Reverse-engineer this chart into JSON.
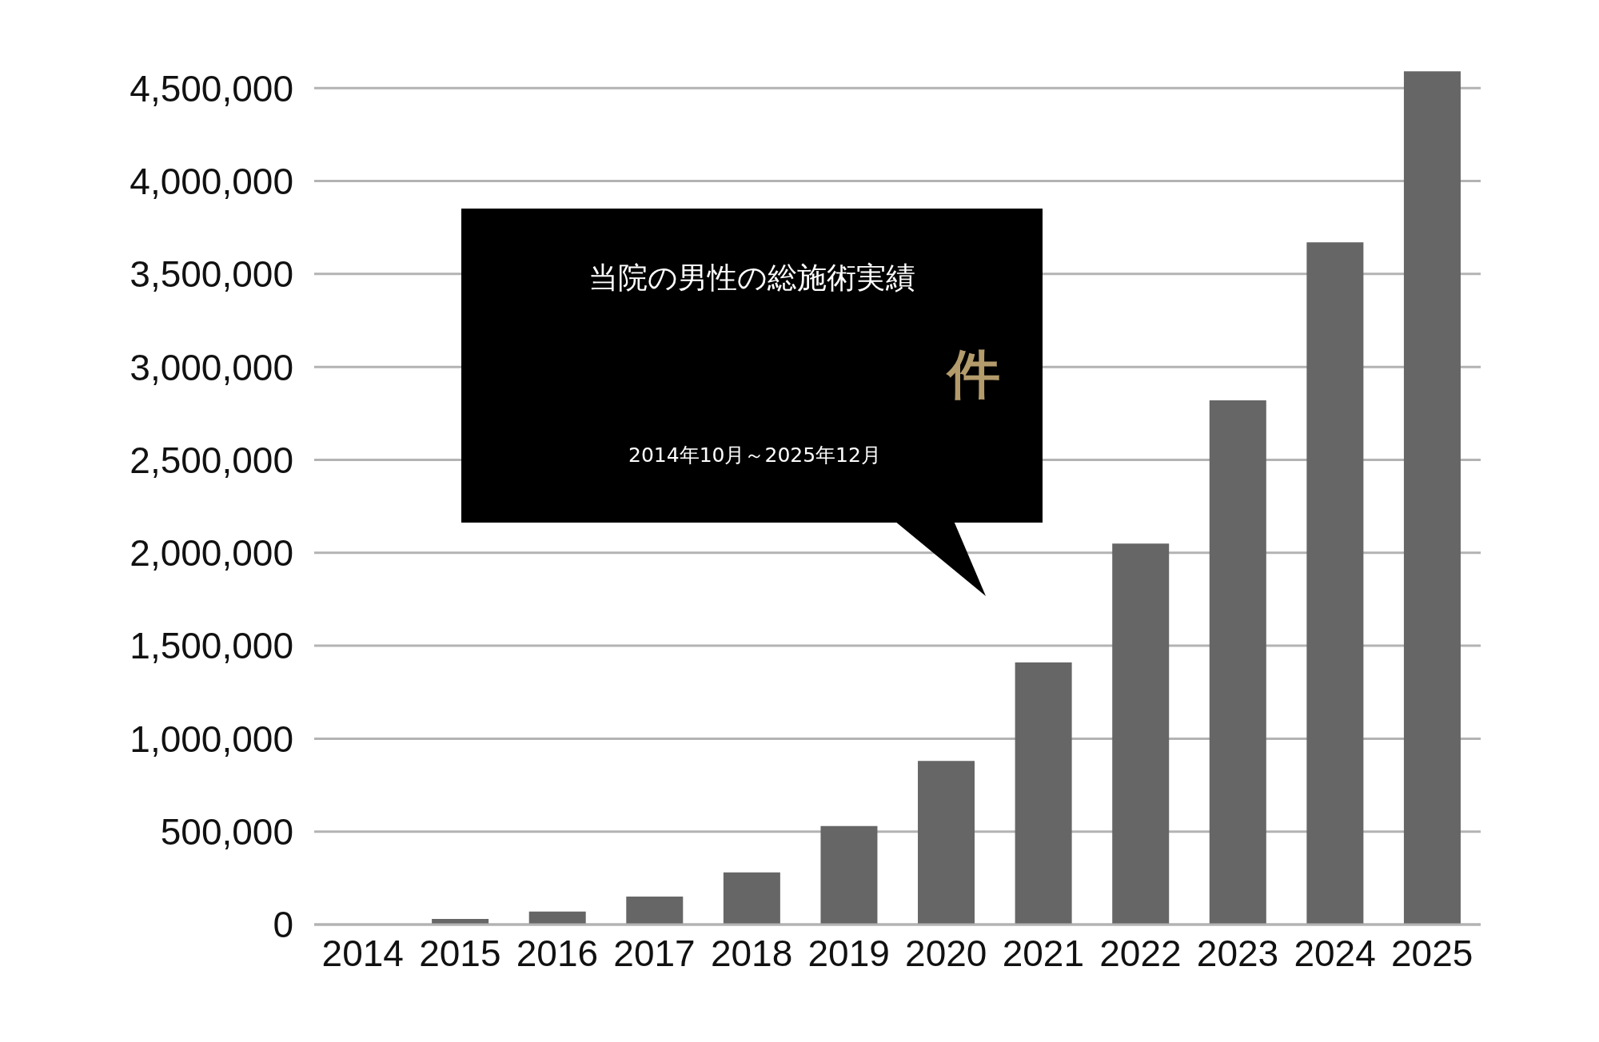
{
  "chart_data": {
    "type": "bar",
    "categories": [
      "2014",
      "2015",
      "2016",
      "2017",
      "2018",
      "2019",
      "2020",
      "2021",
      "2022",
      "2023",
      "2024",
      "2025"
    ],
    "values": [
      0,
      30000,
      70000,
      150000,
      280000,
      530000,
      880000,
      1410000,
      2050000,
      2820000,
      3670000,
      4590000
    ],
    "color": "#666666",
    "ylim": [
      0,
      4600000
    ],
    "yticks": [
      0,
      {
        "value": 500000,
        "label": "500,000"
      },
      {
        "value": 1000000,
        "label": "1,000,000"
      },
      {
        "value": 1500000,
        "label": "1,500,000"
      },
      {
        "value": 2000000,
        "label": "2,000,000"
      },
      {
        "value": 2500000,
        "label": "2,500,000"
      },
      {
        "value": 3000000,
        "label": "3,000,000"
      },
      {
        "value": 3500000,
        "label": "3,500,000"
      },
      {
        "value": 4000000,
        "label": "4,000,000"
      },
      {
        "value": 4500000,
        "label": "4,500,000"
      }
    ],
    "grid": "y",
    "annotations": [
      "当院の男性の総施術実績",
      "件",
      "2014年10月～2025年12月"
    ]
  }
}
